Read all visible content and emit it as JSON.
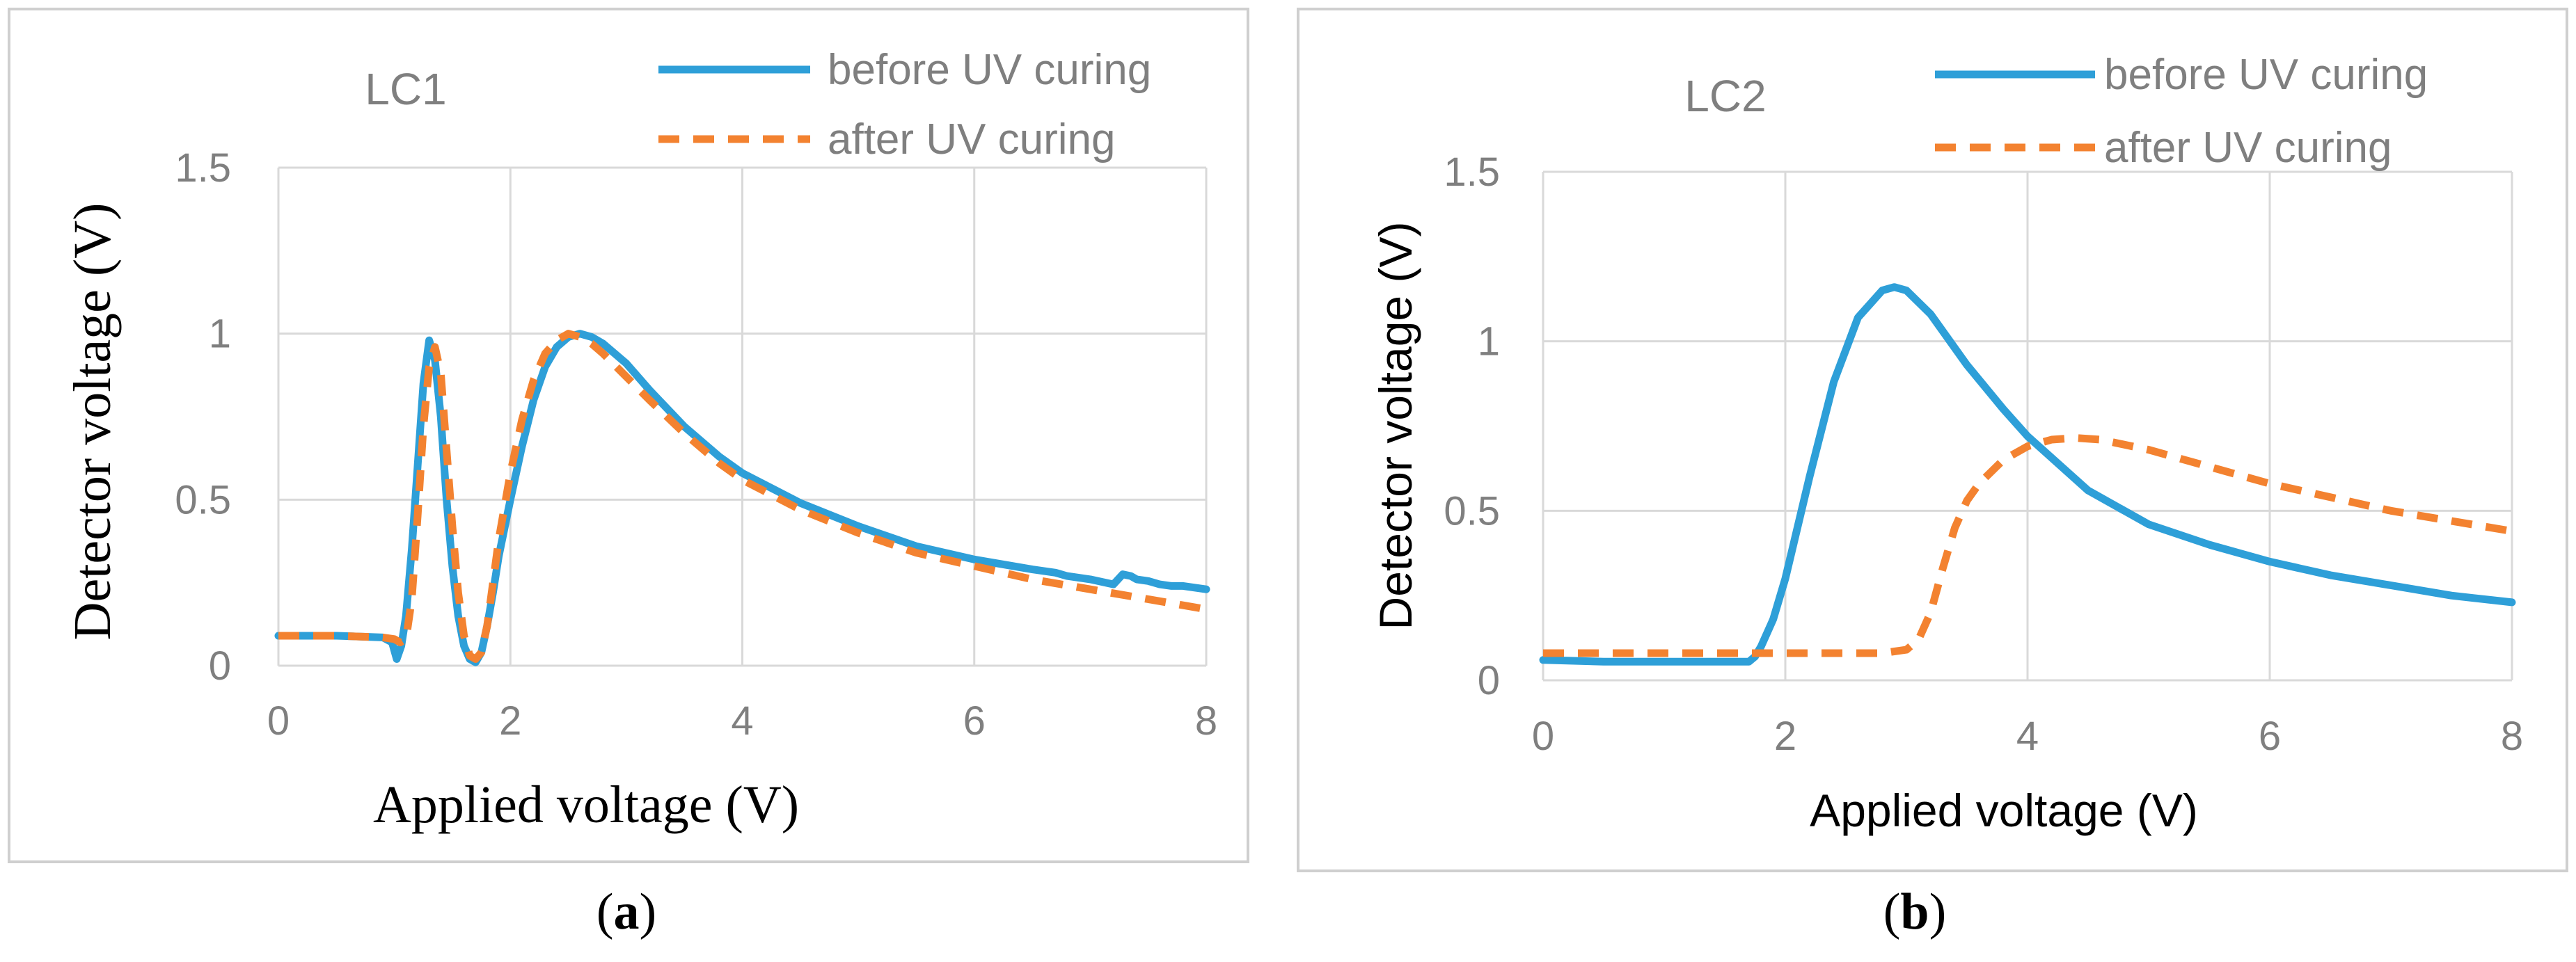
{
  "chart_data": [
    {
      "type": "line",
      "title": "LC1",
      "xlabel": "Applied voltage (V)",
      "ylabel": "Detector voltage (V)",
      "xlim": [
        0,
        8
      ],
      "ylim": [
        0,
        1.5
      ],
      "x_ticks": [
        "0",
        "2",
        "4",
        "6",
        "8"
      ],
      "y_ticks": [
        "0",
        "0.5",
        "1",
        "1.5"
      ],
      "grid": true,
      "legend_position": "top-right",
      "panel_label": {
        "open": "(",
        "letter": "a",
        "close": ")"
      },
      "series": [
        {
          "name": "before UV curing",
          "color": "#2e9fd8",
          "style": "solid",
          "x": [
            0,
            0.5,
            0.9,
            0.98,
            1.02,
            1.06,
            1.1,
            1.15,
            1.2,
            1.25,
            1.3,
            1.35,
            1.4,
            1.45,
            1.5,
            1.55,
            1.6,
            1.65,
            1.7,
            1.75,
            1.8,
            1.85,
            1.9,
            2.0,
            2.1,
            2.2,
            2.3,
            2.4,
            2.5,
            2.6,
            2.7,
            2.8,
            3.0,
            3.2,
            3.5,
            3.8,
            4.0,
            4.5,
            5.0,
            5.5,
            6.0,
            6.5,
            6.7,
            6.8,
            7.0,
            7.2,
            7.28,
            7.35,
            7.4,
            7.5,
            7.6,
            7.7,
            7.8,
            8.0
          ],
          "values": [
            0.09,
            0.09,
            0.085,
            0.07,
            0.02,
            0.06,
            0.15,
            0.35,
            0.6,
            0.85,
            0.98,
            0.92,
            0.75,
            0.5,
            0.3,
            0.15,
            0.06,
            0.02,
            0.01,
            0.04,
            0.12,
            0.22,
            0.33,
            0.5,
            0.66,
            0.8,
            0.9,
            0.96,
            0.99,
            1.0,
            0.99,
            0.97,
            0.91,
            0.83,
            0.72,
            0.63,
            0.58,
            0.49,
            0.42,
            0.36,
            0.32,
            0.29,
            0.28,
            0.27,
            0.26,
            0.245,
            0.275,
            0.27,
            0.26,
            0.255,
            0.245,
            0.24,
            0.24,
            0.23
          ]
        },
        {
          "name": "after UV curing",
          "color": "#f38230",
          "style": "dashed",
          "x": [
            0,
            0.5,
            0.9,
            1.0,
            1.05,
            1.1,
            1.15,
            1.2,
            1.25,
            1.3,
            1.35,
            1.4,
            1.45,
            1.5,
            1.55,
            1.6,
            1.65,
            1.7,
            1.75,
            1.8,
            1.85,
            1.9,
            2.0,
            2.1,
            2.2,
            2.3,
            2.4,
            2.5,
            2.6,
            2.7,
            2.8,
            3.0,
            3.2,
            3.5,
            3.8,
            4.0,
            4.5,
            5.0,
            5.5,
            6.0,
            6.5,
            7.0,
            7.5,
            8.0
          ],
          "values": [
            0.09,
            0.09,
            0.085,
            0.08,
            0.07,
            0.08,
            0.2,
            0.45,
            0.72,
            0.9,
            0.96,
            0.88,
            0.65,
            0.42,
            0.22,
            0.09,
            0.03,
            0.02,
            0.04,
            0.12,
            0.25,
            0.38,
            0.58,
            0.74,
            0.86,
            0.94,
            0.98,
            1.0,
            0.99,
            0.97,
            0.94,
            0.87,
            0.8,
            0.7,
            0.61,
            0.56,
            0.47,
            0.4,
            0.34,
            0.3,
            0.26,
            0.23,
            0.2,
            0.17
          ]
        }
      ]
    },
    {
      "type": "line",
      "title": "LC2",
      "xlabel": "Applied voltage (V)",
      "ylabel": "Detector voltage (V)",
      "xlim": [
        0,
        8
      ],
      "ylim": [
        0,
        1.5
      ],
      "x_ticks": [
        "0",
        "2",
        "4",
        "6",
        "8"
      ],
      "y_ticks": [
        "0",
        "0.5",
        "1",
        "1.5"
      ],
      "grid": true,
      "legend_position": "top-right",
      "panel_label": {
        "open": "(",
        "letter": "b",
        "close": ")"
      },
      "series": [
        {
          "name": "before UV curing",
          "color": "#2e9fd8",
          "style": "solid",
          "x": [
            0,
            0.5,
            1.0,
            1.5,
            1.7,
            1.75,
            1.8,
            1.9,
            2.0,
            2.2,
            2.4,
            2.6,
            2.8,
            2.9,
            3.0,
            3.2,
            3.5,
            3.8,
            4.0,
            4.5,
            5.0,
            5.5,
            6.0,
            6.5,
            7.0,
            7.5,
            8.0
          ],
          "values": [
            0.06,
            0.055,
            0.055,
            0.055,
            0.055,
            0.07,
            0.1,
            0.18,
            0.3,
            0.6,
            0.88,
            1.07,
            1.15,
            1.16,
            1.15,
            1.08,
            0.93,
            0.8,
            0.72,
            0.56,
            0.46,
            0.4,
            0.35,
            0.31,
            0.28,
            0.25,
            0.23
          ]
        },
        {
          "name": "after UV curing",
          "color": "#f38230",
          "style": "dashed",
          "x": [
            0,
            1.0,
            2.0,
            2.8,
            3.0,
            3.1,
            3.2,
            3.3,
            3.4,
            3.5,
            3.6,
            3.8,
            4.0,
            4.2,
            4.4,
            4.6,
            5.0,
            5.5,
            6.0,
            6.5,
            7.0,
            7.5,
            8.0
          ],
          "values": [
            0.08,
            0.08,
            0.08,
            0.08,
            0.09,
            0.12,
            0.2,
            0.33,
            0.45,
            0.53,
            0.58,
            0.65,
            0.69,
            0.71,
            0.715,
            0.71,
            0.68,
            0.63,
            0.58,
            0.54,
            0.5,
            0.47,
            0.44
          ]
        }
      ]
    }
  ]
}
